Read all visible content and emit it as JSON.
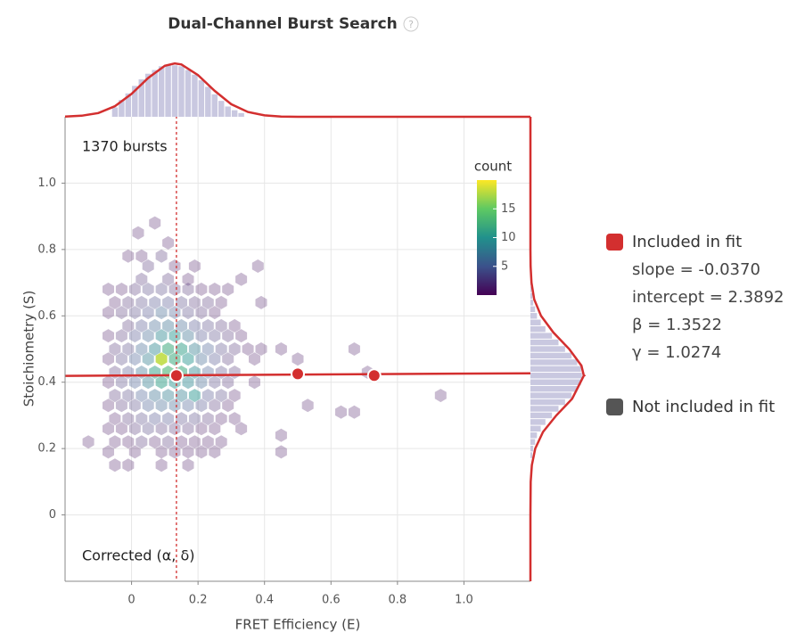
{
  "chart_data": {
    "type": "hexbin",
    "title": "Dual-Channel Burst Search",
    "help_icon": "?",
    "annotations": [
      "1370 bursts",
      "Corrected (α, δ)"
    ],
    "x_label": "FRET Efficiency (E)",
    "y_label": "Stoichiometry (S)",
    "xlim": [
      -0.2,
      1.2
    ],
    "ylim": [
      -0.2,
      1.2
    ],
    "xticks": [
      0.0,
      0.2,
      0.4,
      0.6,
      0.8,
      {
        "value": 1,
        "label": "1.0"
      }
    ],
    "yticks": [
      0.0,
      0.2,
      0.4,
      0.6,
      0.8,
      {
        "value": 1,
        "label": "1.0"
      }
    ],
    "grid": true,
    "hexbins": [
      [
        0.07,
        0.88,
        1
      ],
      [
        0.02,
        0.85,
        1
      ],
      [
        0.11,
        0.82,
        1
      ],
      [
        -0.01,
        0.78,
        1
      ],
      [
        0.03,
        0.78,
        1
      ],
      [
        0.09,
        0.78,
        2
      ],
      [
        0.05,
        0.75,
        2
      ],
      [
        0.13,
        0.75,
        1
      ],
      [
        0.19,
        0.75,
        1
      ],
      [
        0.38,
        0.75,
        1
      ],
      [
        0.03,
        0.71,
        2
      ],
      [
        0.11,
        0.71,
        2
      ],
      [
        0.17,
        0.71,
        1
      ],
      [
        0.33,
        0.71,
        1
      ],
      [
        -0.07,
        0.68,
        1
      ],
      [
        -0.03,
        0.68,
        1
      ],
      [
        0.01,
        0.68,
        2
      ],
      [
        0.05,
        0.68,
        3
      ],
      [
        0.09,
        0.68,
        3
      ],
      [
        0.13,
        0.68,
        2
      ],
      [
        0.17,
        0.68,
        2
      ],
      [
        0.21,
        0.68,
        1
      ],
      [
        0.25,
        0.68,
        1
      ],
      [
        0.29,
        0.68,
        1
      ],
      [
        -0.05,
        0.64,
        1
      ],
      [
        -0.01,
        0.64,
        2
      ],
      [
        0.03,
        0.64,
        3
      ],
      [
        0.07,
        0.64,
        4
      ],
      [
        0.11,
        0.64,
        4
      ],
      [
        0.15,
        0.64,
        3
      ],
      [
        0.19,
        0.64,
        2
      ],
      [
        0.23,
        0.64,
        2
      ],
      [
        0.27,
        0.64,
        1
      ],
      [
        0.39,
        0.64,
        1
      ],
      [
        -0.07,
        0.61,
        1
      ],
      [
        -0.03,
        0.61,
        2
      ],
      [
        0.01,
        0.61,
        3
      ],
      [
        0.05,
        0.61,
        4
      ],
      [
        0.09,
        0.61,
        6
      ],
      [
        0.13,
        0.61,
        5
      ],
      [
        0.17,
        0.61,
        3
      ],
      [
        0.21,
        0.61,
        2
      ],
      [
        0.25,
        0.61,
        1
      ],
      [
        -0.01,
        0.57,
        2
      ],
      [
        0.03,
        0.57,
        4
      ],
      [
        0.07,
        0.57,
        6
      ],
      [
        0.11,
        0.57,
        7
      ],
      [
        0.15,
        0.57,
        6
      ],
      [
        0.19,
        0.57,
        4
      ],
      [
        0.23,
        0.57,
        3
      ],
      [
        0.27,
        0.57,
        2
      ],
      [
        0.31,
        0.57,
        1
      ],
      [
        -0.07,
        0.54,
        1
      ],
      [
        -0.03,
        0.54,
        2
      ],
      [
        0.01,
        0.54,
        4
      ],
      [
        0.05,
        0.54,
        6
      ],
      [
        0.09,
        0.54,
        9
      ],
      [
        0.13,
        0.54,
        10
      ],
      [
        0.17,
        0.54,
        7
      ],
      [
        0.21,
        0.54,
        4
      ],
      [
        0.25,
        0.54,
        3
      ],
      [
        0.29,
        0.54,
        2
      ],
      [
        0.33,
        0.54,
        1
      ],
      [
        -0.05,
        0.5,
        2
      ],
      [
        -0.01,
        0.5,
        3
      ],
      [
        0.03,
        0.5,
        6
      ],
      [
        0.07,
        0.5,
        9
      ],
      [
        0.11,
        0.5,
        12
      ],
      [
        0.15,
        0.5,
        11
      ],
      [
        0.19,
        0.5,
        8
      ],
      [
        0.23,
        0.5,
        5
      ],
      [
        0.27,
        0.5,
        3
      ],
      [
        0.31,
        0.5,
        2
      ],
      [
        0.35,
        0.5,
        1
      ],
      [
        0.39,
        0.5,
        1
      ],
      [
        0.45,
        0.5,
        1
      ],
      [
        0.67,
        0.5,
        1
      ],
      [
        -0.07,
        0.47,
        1
      ],
      [
        -0.03,
        0.47,
        3
      ],
      [
        0.01,
        0.47,
        5
      ],
      [
        0.05,
        0.47,
        8
      ],
      [
        0.09,
        0.47,
        18
      ],
      [
        0.13,
        0.47,
        12
      ],
      [
        0.17,
        0.47,
        10
      ],
      [
        0.21,
        0.47,
        6
      ],
      [
        0.25,
        0.47,
        4
      ],
      [
        0.29,
        0.47,
        2
      ],
      [
        0.37,
        0.47,
        1
      ],
      [
        0.5,
        0.47,
        1
      ],
      [
        -0.05,
        0.43,
        2
      ],
      [
        -0.01,
        0.43,
        4
      ],
      [
        0.03,
        0.43,
        7
      ],
      [
        0.07,
        0.43,
        11
      ],
      [
        0.11,
        0.43,
        13
      ],
      [
        0.15,
        0.43,
        12
      ],
      [
        0.19,
        0.43,
        9
      ],
      [
        0.23,
        0.43,
        5
      ],
      [
        0.27,
        0.43,
        3
      ],
      [
        0.31,
        0.43,
        2
      ],
      [
        0.71,
        0.43,
        1
      ],
      [
        -0.07,
        0.4,
        1
      ],
      [
        -0.03,
        0.4,
        3
      ],
      [
        0.01,
        0.4,
        5
      ],
      [
        0.05,
        0.4,
        8
      ],
      [
        0.09,
        0.4,
        11
      ],
      [
        0.13,
        0.4,
        10
      ],
      [
        0.17,
        0.4,
        9
      ],
      [
        0.21,
        0.4,
        6
      ],
      [
        0.25,
        0.4,
        3
      ],
      [
        0.29,
        0.4,
        2
      ],
      [
        0.37,
        0.4,
        1
      ],
      [
        -0.05,
        0.36,
        2
      ],
      [
        -0.01,
        0.36,
        3
      ],
      [
        0.03,
        0.36,
        5
      ],
      [
        0.07,
        0.36,
        7
      ],
      [
        0.11,
        0.36,
        8
      ],
      [
        0.15,
        0.36,
        8
      ],
      [
        0.19,
        0.36,
        10
      ],
      [
        0.23,
        0.36,
        4
      ],
      [
        0.27,
        0.36,
        3
      ],
      [
        0.31,
        0.36,
        1
      ],
      [
        0.93,
        0.36,
        1
      ],
      [
        -0.07,
        0.33,
        1
      ],
      [
        -0.03,
        0.33,
        2
      ],
      [
        0.01,
        0.33,
        3
      ],
      [
        0.05,
        0.33,
        5
      ],
      [
        0.09,
        0.33,
        6
      ],
      [
        0.13,
        0.33,
        6
      ],
      [
        0.17,
        0.33,
        5
      ],
      [
        0.21,
        0.33,
        4
      ],
      [
        0.25,
        0.33,
        2
      ],
      [
        0.29,
        0.33,
        1
      ],
      [
        0.53,
        0.33,
        1
      ],
      [
        -0.05,
        0.29,
        1
      ],
      [
        -0.01,
        0.29,
        2
      ],
      [
        0.03,
        0.29,
        3
      ],
      [
        0.07,
        0.29,
        4
      ],
      [
        0.11,
        0.29,
        4
      ],
      [
        0.15,
        0.29,
        3
      ],
      [
        0.19,
        0.29,
        3
      ],
      [
        0.23,
        0.29,
        2
      ],
      [
        0.27,
        0.29,
        1
      ],
      [
        0.31,
        0.29,
        1
      ],
      [
        0.63,
        0.31,
        1
      ],
      [
        0.67,
        0.31,
        1
      ],
      [
        -0.07,
        0.26,
        1
      ],
      [
        -0.03,
        0.26,
        1
      ],
      [
        0.01,
        0.26,
        2
      ],
      [
        0.05,
        0.26,
        3
      ],
      [
        0.09,
        0.26,
        2
      ],
      [
        0.13,
        0.26,
        2
      ],
      [
        0.17,
        0.26,
        2
      ],
      [
        0.21,
        0.26,
        1
      ],
      [
        0.25,
        0.26,
        1
      ],
      [
        0.33,
        0.26,
        1
      ],
      [
        -0.13,
        0.22,
        1
      ],
      [
        -0.05,
        0.22,
        1
      ],
      [
        -0.01,
        0.22,
        1
      ],
      [
        0.03,
        0.22,
        2
      ],
      [
        0.07,
        0.22,
        1
      ],
      [
        0.11,
        0.22,
        2
      ],
      [
        0.15,
        0.22,
        1
      ],
      [
        0.19,
        0.22,
        1
      ],
      [
        0.23,
        0.22,
        1
      ],
      [
        0.27,
        0.22,
        1
      ],
      [
        0.45,
        0.19,
        1
      ],
      [
        -0.07,
        0.19,
        1
      ],
      [
        0.01,
        0.19,
        1
      ],
      [
        0.09,
        0.19,
        1
      ],
      [
        0.13,
        0.19,
        1
      ],
      [
        0.17,
        0.19,
        1
      ],
      [
        0.21,
        0.19,
        1
      ],
      [
        0.25,
        0.19,
        1
      ],
      [
        0.45,
        0.24,
        1
      ],
      [
        -0.05,
        0.15,
        1
      ],
      [
        -0.01,
        0.15,
        1
      ],
      [
        0.09,
        0.15,
        1
      ],
      [
        0.17,
        0.15,
        1
      ]
    ],
    "colorbar": {
      "title": "count",
      "lim": [
        0,
        20
      ],
      "ticks": [
        5,
        10,
        15
      ]
    },
    "fit_points": {
      "name": "Included in fit",
      "color": "#d32f2f",
      "x": [
        0.135,
        0.5,
        0.73
      ],
      "y": [
        0.42,
        0.425,
        0.42
      ]
    },
    "fit_line": {
      "x": [
        -0.2,
        1.2
      ],
      "y": [
        0.419,
        0.427
      ]
    },
    "center": {
      "x": 0.135,
      "y": 0.42
    },
    "other_points": {
      "name": "Not included in fit",
      "color": "#555555"
    },
    "fit_stats": [
      "slope = -0.0370",
      "intercept = 2.3892",
      "β = 1.3522",
      "γ = 1.0274"
    ],
    "top_histogram": {
      "bins": [
        -0.06,
        -0.04,
        -0.02,
        0,
        0.02,
        0.04,
        0.06,
        0.08,
        0.1,
        0.12,
        0.14,
        0.16,
        0.18,
        0.2,
        0.22,
        0.24,
        0.26,
        0.28,
        0.3,
        0.32,
        0.34
      ],
      "counts": [
        10,
        18,
        25,
        33,
        40,
        46,
        50,
        54,
        55,
        55,
        54,
        50,
        45,
        39,
        32,
        24,
        17,
        11,
        7,
        4
      ],
      "curve_x": [
        -0.2,
        -0.15,
        -0.1,
        -0.05,
        0,
        0.05,
        0.1,
        0.13,
        0.15,
        0.2,
        0.25,
        0.3,
        0.35,
        0.4,
        0.45,
        0.5,
        0.6,
        0.8,
        1.0,
        1.2
      ],
      "curve_values": [
        0.2,
        1.1,
        4.0,
        11.3,
        24.5,
        41.4,
        54.5,
        57,
        55.9,
        44.6,
        27.7,
        13.4,
        5.1,
        1.5,
        0.3,
        0,
        0,
        0,
        0,
        0
      ]
    },
    "right_histogram": {
      "bins": [
        0.17,
        0.19,
        0.21,
        0.23,
        0.25,
        0.27,
        0.29,
        0.31,
        0.33,
        0.35,
        0.37,
        0.39,
        0.41,
        0.43,
        0.45,
        0.47,
        0.49,
        0.51,
        0.53,
        0.55,
        0.57,
        0.59,
        0.61,
        0.63,
        0.65,
        0.67,
        0.69,
        0.71,
        0.73
      ],
      "counts": [
        2,
        3,
        5,
        7,
        11,
        16,
        23,
        30,
        37,
        44,
        50,
        54,
        55,
        54,
        50,
        44,
        37,
        30,
        23,
        16,
        11,
        7,
        5,
        3,
        2,
        1,
        1,
        1
      ],
      "curve_y": [
        -0.2,
        0,
        0.1,
        0.15,
        0.2,
        0.25,
        0.3,
        0.35,
        0.42,
        0.45,
        0.5,
        0.55,
        0.6,
        0.65,
        0.7,
        0.75,
        0.8,
        1.0,
        1.2
      ],
      "curve_values": [
        0,
        0,
        0.3,
        1.5,
        5.1,
        13.4,
        27.7,
        44.6,
        57,
        54.5,
        41.4,
        24.5,
        11.3,
        4.0,
        1.1,
        0.2,
        0,
        0,
        0
      ]
    }
  }
}
